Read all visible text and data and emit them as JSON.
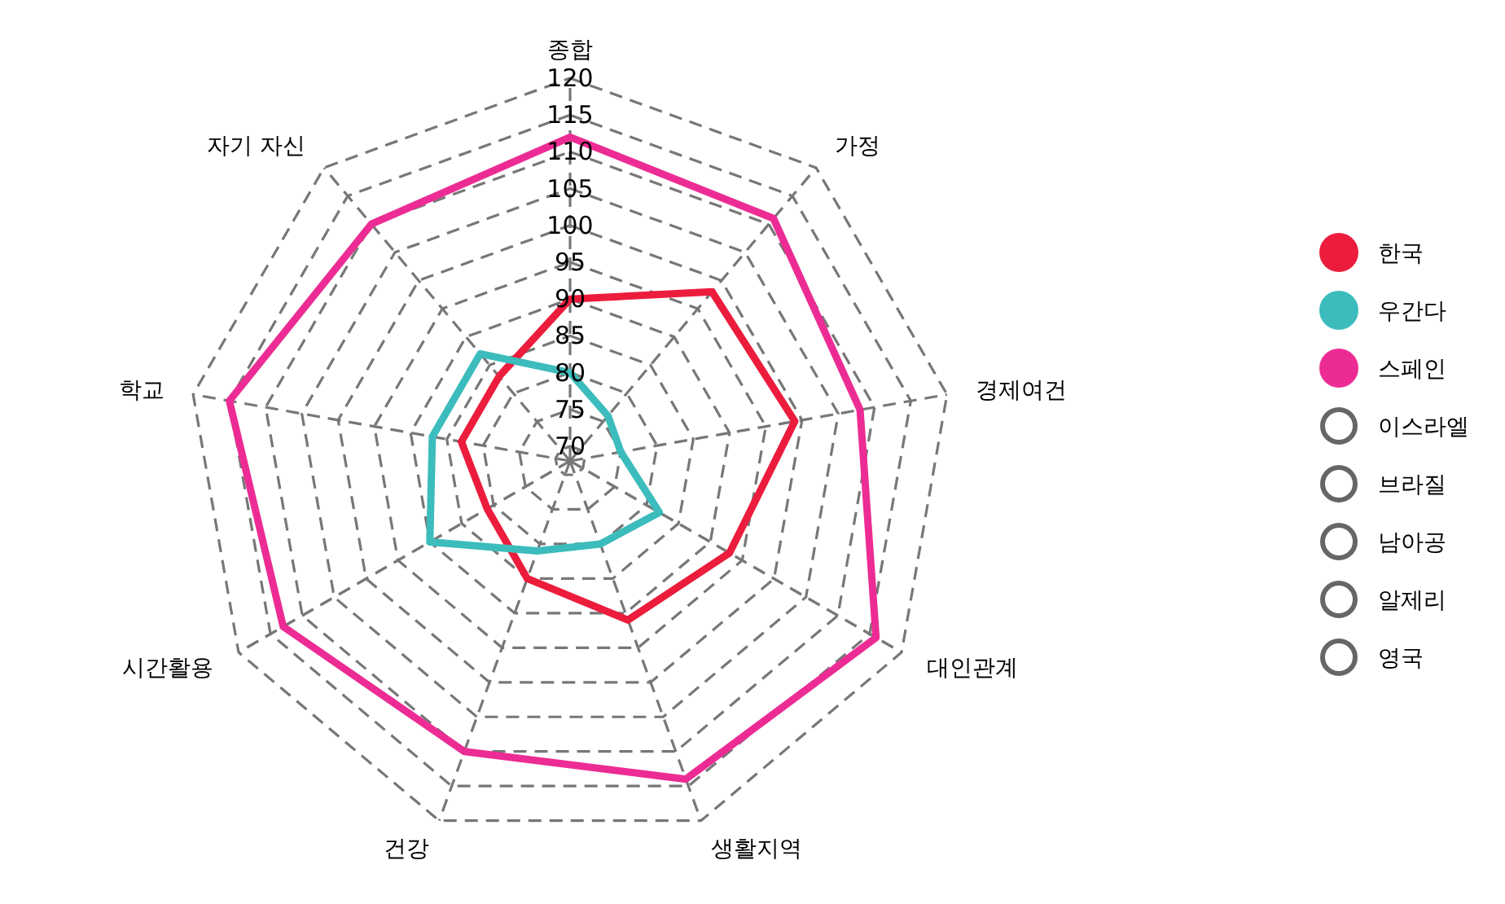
{
  "chart_data": {
    "type": "radar",
    "categories": [
      "종합",
      "가정",
      "경제여건",
      "대인관계",
      "생활지역",
      "건강",
      "시간활용",
      "학교",
      "자기 자신"
    ],
    "ylim": [
      68,
      120
    ],
    "yticks": [
      70,
      75,
      80,
      85,
      90,
      95,
      100,
      105,
      110,
      115,
      120
    ],
    "grid": true,
    "legend": "right",
    "line_style": "solid",
    "series": [
      {
        "name": "한국",
        "color": "#ec1c3c",
        "values": [
          90,
          98,
          99,
          93,
          91,
          85,
          81,
          83,
          83
        ]
      },
      {
        "name": "우간다",
        "color": "#3cbcbc",
        "values": [
          80,
          76,
          75,
          82,
          80,
          81,
          90,
          87,
          87
        ]
      },
      {
        "name": "스페인",
        "color": "#ec2c94",
        "values": [
          112,
          111,
          108,
          116,
          114,
          110,
          113,
          115,
          110
        ]
      }
    ],
    "annotations": [
      "이스라엘",
      "브라질",
      "남아공",
      "알제리",
      "영국"
    ]
  }
}
